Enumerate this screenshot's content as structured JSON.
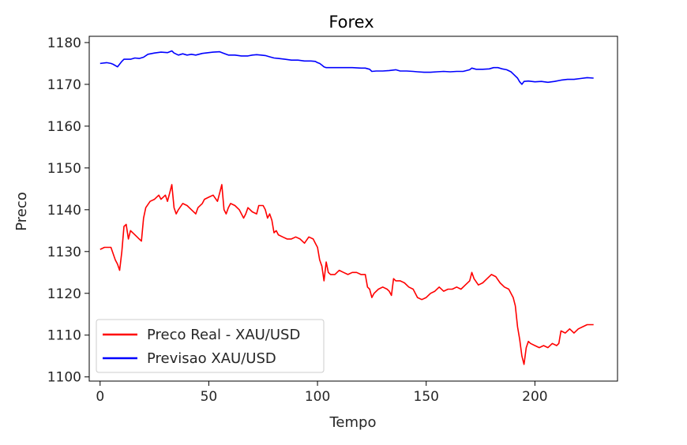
{
  "chart_data": {
    "type": "line",
    "title": "Forex",
    "xlabel": "Tempo",
    "ylabel": "Preco",
    "xlim": [
      -5,
      238
    ],
    "ylim": [
      1099,
      1181.5
    ],
    "xticks": [
      0,
      50,
      100,
      150,
      200
    ],
    "yticks": [
      1100,
      1110,
      1120,
      1130,
      1140,
      1150,
      1160,
      1170,
      1180
    ],
    "grid": false,
    "legend_position": "lower-left",
    "series": [
      {
        "name": "Preco Real - XAU/USD",
        "color": "#ff0000",
        "points": [
          [
            0,
            1130.5
          ],
          [
            2,
            1131
          ],
          [
            5,
            1131
          ],
          [
            7,
            1128
          ],
          [
            8,
            1127
          ],
          [
            9,
            1125.5
          ],
          [
            10,
            1130
          ],
          [
            11,
            1136
          ],
          [
            12,
            1136.5
          ],
          [
            13,
            1133
          ],
          [
            14,
            1135
          ],
          [
            16,
            1134
          ],
          [
            18,
            1133
          ],
          [
            19,
            1132.5
          ],
          [
            20,
            1138
          ],
          [
            21,
            1140.5
          ],
          [
            23,
            1142
          ],
          [
            25,
            1142.5
          ],
          [
            27,
            1143.5
          ],
          [
            28,
            1142.5
          ],
          [
            30,
            1143.5
          ],
          [
            31,
            1142
          ],
          [
            32,
            1144
          ],
          [
            33,
            1146
          ],
          [
            34,
            1140.5
          ],
          [
            35,
            1139
          ],
          [
            36,
            1140
          ],
          [
            38,
            1141.5
          ],
          [
            40,
            1141
          ],
          [
            42,
            1140
          ],
          [
            44,
            1139
          ],
          [
            45,
            1140.5
          ],
          [
            47,
            1141.5
          ],
          [
            48,
            1142.5
          ],
          [
            50,
            1143
          ],
          [
            52,
            1143.5
          ],
          [
            54,
            1142
          ],
          [
            55,
            1144
          ],
          [
            56,
            1146
          ],
          [
            57,
            1140
          ],
          [
            58,
            1139
          ],
          [
            59,
            1140.5
          ],
          [
            60,
            1141.5
          ],
          [
            62,
            1141
          ],
          [
            64,
            1140
          ],
          [
            66,
            1138
          ],
          [
            67,
            1139
          ],
          [
            68,
            1140.5
          ],
          [
            70,
            1139.5
          ],
          [
            72,
            1139
          ],
          [
            73,
            1141
          ],
          [
            75,
            1141
          ],
          [
            76,
            1140
          ],
          [
            77,
            1138
          ],
          [
            78,
            1139
          ],
          [
            79,
            1137.5
          ],
          [
            80,
            1134.5
          ],
          [
            81,
            1135
          ],
          [
            82,
            1134
          ],
          [
            84,
            1133.5
          ],
          [
            86,
            1133
          ],
          [
            88,
            1133
          ],
          [
            90,
            1133.5
          ],
          [
            92,
            1133
          ],
          [
            94,
            1132
          ],
          [
            96,
            1133.5
          ],
          [
            98,
            1133
          ],
          [
            99,
            1132
          ],
          [
            100,
            1131
          ],
          [
            101,
            1128
          ],
          [
            102,
            1126.5
          ],
          [
            103,
            1123
          ],
          [
            104,
            1127.5
          ],
          [
            105,
            1125
          ],
          [
            106,
            1124.5
          ],
          [
            108,
            1124.5
          ],
          [
            110,
            1125.5
          ],
          [
            112,
            1125
          ],
          [
            114,
            1124.5
          ],
          [
            116,
            1125
          ],
          [
            118,
            1125
          ],
          [
            120,
            1124.5
          ],
          [
            122,
            1124.5
          ],
          [
            123,
            1121.5
          ],
          [
            124,
            1121
          ],
          [
            125,
            1119
          ],
          [
            126,
            1120
          ],
          [
            128,
            1121
          ],
          [
            130,
            1121.5
          ],
          [
            132,
            1121
          ],
          [
            133,
            1120.5
          ],
          [
            134,
            1119.5
          ],
          [
            135,
            1123.5
          ],
          [
            136,
            1123
          ],
          [
            138,
            1123
          ],
          [
            140,
            1122.5
          ],
          [
            142,
            1121.5
          ],
          [
            144,
            1121
          ],
          [
            146,
            1119
          ],
          [
            148,
            1118.5
          ],
          [
            150,
            1119
          ],
          [
            152,
            1120
          ],
          [
            154,
            1120.5
          ],
          [
            156,
            1121.5
          ],
          [
            158,
            1120.5
          ],
          [
            160,
            1121
          ],
          [
            162,
            1121
          ],
          [
            164,
            1121.5
          ],
          [
            166,
            1121
          ],
          [
            168,
            1122
          ],
          [
            170,
            1123
          ],
          [
            171,
            1125
          ],
          [
            172,
            1123.5
          ],
          [
            174,
            1122
          ],
          [
            176,
            1122.5
          ],
          [
            178,
            1123.5
          ],
          [
            180,
            1124.5
          ],
          [
            182,
            1124
          ],
          [
            184,
            1122.5
          ],
          [
            186,
            1121.5
          ],
          [
            188,
            1121
          ],
          [
            190,
            1119
          ],
          [
            191,
            1117
          ],
          [
            192,
            1112
          ],
          [
            193,
            1109
          ],
          [
            194,
            1105
          ],
          [
            195,
            1103
          ],
          [
            196,
            1107
          ],
          [
            197,
            1108.5
          ],
          [
            198,
            1108
          ],
          [
            200,
            1107.5
          ],
          [
            202,
            1107
          ],
          [
            204,
            1107.5
          ],
          [
            206,
            1107
          ],
          [
            208,
            1108
          ],
          [
            210,
            1107.5
          ],
          [
            211,
            1108
          ],
          [
            212,
            1111
          ],
          [
            214,
            1110.5
          ],
          [
            216,
            1111.5
          ],
          [
            218,
            1110.5
          ],
          [
            220,
            1111.5
          ],
          [
            222,
            1112
          ],
          [
            224,
            1112.5
          ],
          [
            226,
            1112.5
          ],
          [
            227,
            1112.5
          ]
        ]
      },
      {
        "name": "Previsao XAU/USD",
        "color": "#0000ff",
        "points": [
          [
            0,
            1175
          ],
          [
            3,
            1175.2
          ],
          [
            5,
            1175
          ],
          [
            6,
            1174.8
          ],
          [
            8,
            1174.2
          ],
          [
            10,
            1175.5
          ],
          [
            11,
            1176
          ],
          [
            14,
            1176
          ],
          [
            16,
            1176.3
          ],
          [
            18,
            1176.2
          ],
          [
            20,
            1176.5
          ],
          [
            22,
            1177.2
          ],
          [
            25,
            1177.5
          ],
          [
            28,
            1177.7
          ],
          [
            31,
            1177.6
          ],
          [
            33,
            1178
          ],
          [
            34,
            1177.5
          ],
          [
            36,
            1177
          ],
          [
            38,
            1177.3
          ],
          [
            40,
            1177
          ],
          [
            42,
            1177.2
          ],
          [
            44,
            1177
          ],
          [
            47,
            1177.4
          ],
          [
            50,
            1177.6
          ],
          [
            52,
            1177.7
          ],
          [
            55,
            1177.8
          ],
          [
            57,
            1177.4
          ],
          [
            59,
            1177
          ],
          [
            62,
            1177
          ],
          [
            65,
            1176.8
          ],
          [
            68,
            1176.8
          ],
          [
            70,
            1177
          ],
          [
            72,
            1177.1
          ],
          [
            74,
            1177
          ],
          [
            76,
            1176.9
          ],
          [
            78,
            1176.6
          ],
          [
            80,
            1176.3
          ],
          [
            82,
            1176.2
          ],
          [
            85,
            1176
          ],
          [
            88,
            1175.8
          ],
          [
            91,
            1175.8
          ],
          [
            94,
            1175.6
          ],
          [
            97,
            1175.6
          ],
          [
            99,
            1175.5
          ],
          [
            100,
            1175.2
          ],
          [
            101,
            1175
          ],
          [
            102,
            1174.6
          ],
          [
            103,
            1174.2
          ],
          [
            104,
            1174
          ],
          [
            108,
            1174
          ],
          [
            112,
            1174
          ],
          [
            116,
            1174
          ],
          [
            120,
            1173.9
          ],
          [
            122,
            1173.9
          ],
          [
            124,
            1173.6
          ],
          [
            125,
            1173.1
          ],
          [
            127,
            1173.2
          ],
          [
            130,
            1173.2
          ],
          [
            133,
            1173.3
          ],
          [
            136,
            1173.5
          ],
          [
            138,
            1173.2
          ],
          [
            141,
            1173.2
          ],
          [
            144,
            1173.1
          ],
          [
            146,
            1173
          ],
          [
            149,
            1172.9
          ],
          [
            152,
            1172.9
          ],
          [
            155,
            1173
          ],
          [
            158,
            1173.1
          ],
          [
            161,
            1173
          ],
          [
            164,
            1173.1
          ],
          [
            167,
            1173.1
          ],
          [
            170,
            1173.5
          ],
          [
            171,
            1173.9
          ],
          [
            173,
            1173.6
          ],
          [
            176,
            1173.6
          ],
          [
            179,
            1173.7
          ],
          [
            181,
            1174
          ],
          [
            183,
            1174
          ],
          [
            185,
            1173.7
          ],
          [
            187,
            1173.5
          ],
          [
            189,
            1173
          ],
          [
            190,
            1172.5
          ],
          [
            192,
            1171.5
          ],
          [
            193,
            1170.6
          ],
          [
            194,
            1170
          ],
          [
            195,
            1170.7
          ],
          [
            197,
            1170.8
          ],
          [
            200,
            1170.6
          ],
          [
            203,
            1170.7
          ],
          [
            206,
            1170.5
          ],
          [
            209,
            1170.7
          ],
          [
            212,
            1171
          ],
          [
            215,
            1171.2
          ],
          [
            218,
            1171.2
          ],
          [
            221,
            1171.4
          ],
          [
            224,
            1171.6
          ],
          [
            227,
            1171.5
          ]
        ]
      }
    ]
  }
}
